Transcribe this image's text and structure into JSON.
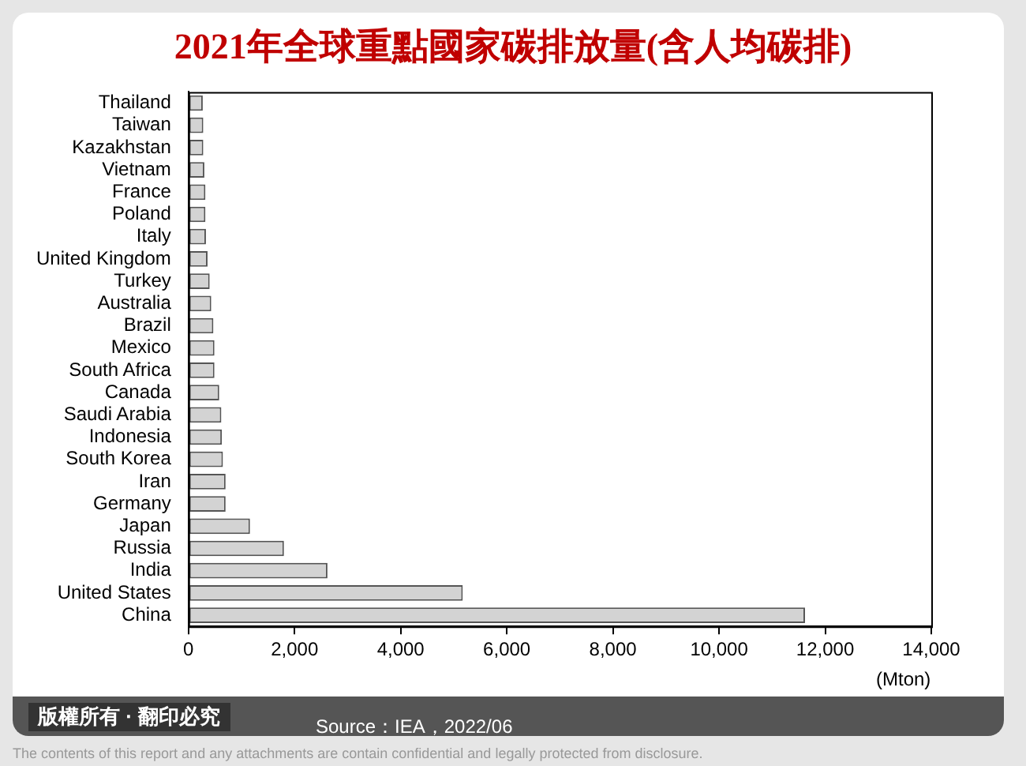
{
  "chart_data": {
    "type": "bar",
    "orientation": "horizontal",
    "title": "2021年全球重點國家碳排放量(含人均碳排)",
    "xlabel": "(Mton)",
    "categories": [
      "Thailand",
      "Taiwan",
      "Kazakhstan",
      "Vietnam",
      "France",
      "Poland",
      "Italy",
      "United Kingdom",
      "Turkey",
      "Australia",
      "Brazil",
      "Mexico",
      "South Africa",
      "Canada",
      "Saudi Arabia",
      "Indonesia",
      "South Korea",
      "Iran",
      "Germany",
      "Japan",
      "Russia",
      "India",
      "United States",
      "China"
    ],
    "values": [
      270,
      280,
      280,
      300,
      320,
      320,
      330,
      360,
      400,
      430,
      470,
      490,
      490,
      580,
      620,
      630,
      650,
      700,
      700,
      1160,
      1800,
      2620,
      5170,
      11620
    ],
    "color": "#d3d3d3",
    "xlim": [
      0,
      14000
    ],
    "xticks": [
      0,
      {
        "value": 2000,
        "label": "2,000"
      },
      {
        "value": 4000,
        "label": "4,000"
      },
      {
        "value": 6000,
        "label": "6,000"
      },
      {
        "value": 8000,
        "label": "8,000"
      },
      {
        "value": 10000,
        "label": "10,000"
      },
      {
        "value": 12000,
        "label": "12,000"
      },
      {
        "value": 14000,
        "label": "14,000"
      }
    ],
    "grid": false,
    "legend": false,
    "annotations": [
      "版權所有 · 翻印必究",
      "Source：IEA，2022/06",
      "The contents of this report and any attachments are contain confidential and legally protected from disclosure."
    ]
  }
}
